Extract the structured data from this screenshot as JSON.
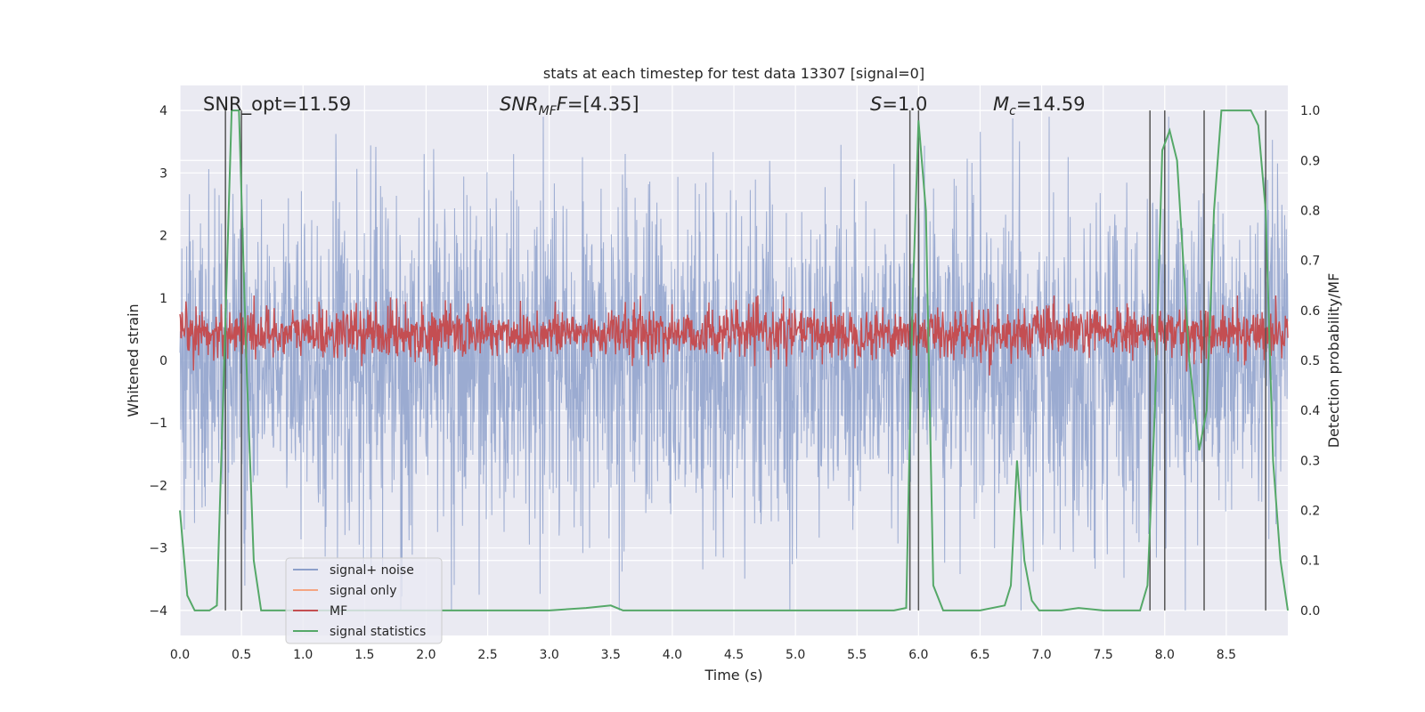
{
  "chart_data": {
    "type": "line",
    "title": "stats at each timestep for test data 13307 [signal=0]",
    "xlabel": "Time (s)",
    "ylabel": "Whitened strain",
    "y2label": "Detection probability/MF",
    "xlim": [
      0.0,
      9.0
    ],
    "ylim": [
      -4.4,
      4.4
    ],
    "y2lim": [
      -0.05,
      1.05
    ],
    "grid": true,
    "legend_position": "lower-left",
    "x_ticks": [
      "0.0",
      "0.5",
      "1.0",
      "1.5",
      "2.0",
      "2.5",
      "3.0",
      "3.5",
      "4.0",
      "4.5",
      "5.0",
      "5.5",
      "6.0",
      "6.5",
      "7.0",
      "7.5",
      "8.0",
      "8.5"
    ],
    "y_ticks": [
      "4",
      "3",
      "2",
      "1",
      "0",
      "−1",
      "−2",
      "−3",
      "−4"
    ],
    "y2_ticks": [
      "1.0",
      "0.9",
      "0.8",
      "0.7",
      "0.6",
      "0.5",
      "0.4",
      "0.3",
      "0.2",
      "0.1",
      "0.0"
    ],
    "annotations": {
      "snr_opt": "SNR_opt=11.59",
      "snr_mf_main": "SNR",
      "snr_mf_sub": "MF",
      "snr_mf_value": "=[4.35]",
      "s_main": "S",
      "s_value": "=1.0",
      "mc_main": "M",
      "mc_sub": "c",
      "mc_value": "=14.59"
    },
    "series": [
      {
        "name": "signal+ noise",
        "color": "#8da0cb",
        "axis": "left",
        "description_stats": {
          "spread": 1.3,
          "typical_peak": 3.5,
          "samples": 2800
        }
      },
      {
        "name": "signal only",
        "color": "#f4a582",
        "axis": "left",
        "values": []
      },
      {
        "name": "MF",
        "color": "#c44e52",
        "axis": "right",
        "description_stats": {
          "baseline": 0.555,
          "spread": 0.025,
          "max": 0.63
        }
      },
      {
        "name": "signal statistics",
        "color": "#55a868",
        "axis": "right",
        "x": [
          0.0,
          0.06,
          0.12,
          0.18,
          0.24,
          0.3,
          0.36,
          0.42,
          0.48,
          0.54,
          0.6,
          0.66,
          0.72,
          1.0,
          2.0,
          3.0,
          3.3,
          3.5,
          3.6,
          4.0,
          5.0,
          5.5,
          5.8,
          5.9,
          5.95,
          6.0,
          6.06,
          6.12,
          6.2,
          6.5,
          6.7,
          6.75,
          6.8,
          6.86,
          6.92,
          6.98,
          7.04,
          7.1,
          7.16,
          7.3,
          7.5,
          7.8,
          7.86,
          7.92,
          7.98,
          8.04,
          8.1,
          8.2,
          8.28,
          8.34,
          8.4,
          8.46,
          8.55,
          8.7,
          8.76,
          8.82,
          8.88,
          8.94,
          9.0
        ],
        "values": [
          0.2,
          0.03,
          0.0,
          0.0,
          0.0,
          0.01,
          0.5,
          1.0,
          1.0,
          0.5,
          0.1,
          0.0,
          0.0,
          0.0,
          0.0,
          0.0,
          0.005,
          0.01,
          0.0,
          0.0,
          0.0,
          0.0,
          0.0,
          0.005,
          0.6,
          0.98,
          0.8,
          0.05,
          0.0,
          0.0,
          0.01,
          0.05,
          0.3,
          0.1,
          0.02,
          0.0,
          0.0,
          0.0,
          0.0,
          0.005,
          0.0,
          0.0,
          0.05,
          0.4,
          0.92,
          0.96,
          0.9,
          0.5,
          0.32,
          0.4,
          0.8,
          1.0,
          1.0,
          1.0,
          0.97,
          0.8,
          0.3,
          0.1,
          0.0
        ]
      }
    ],
    "vertical_lines_x": [
      0.37,
      0.5,
      5.93,
      6.0,
      7.88,
      8.0,
      8.32,
      8.82
    ]
  }
}
